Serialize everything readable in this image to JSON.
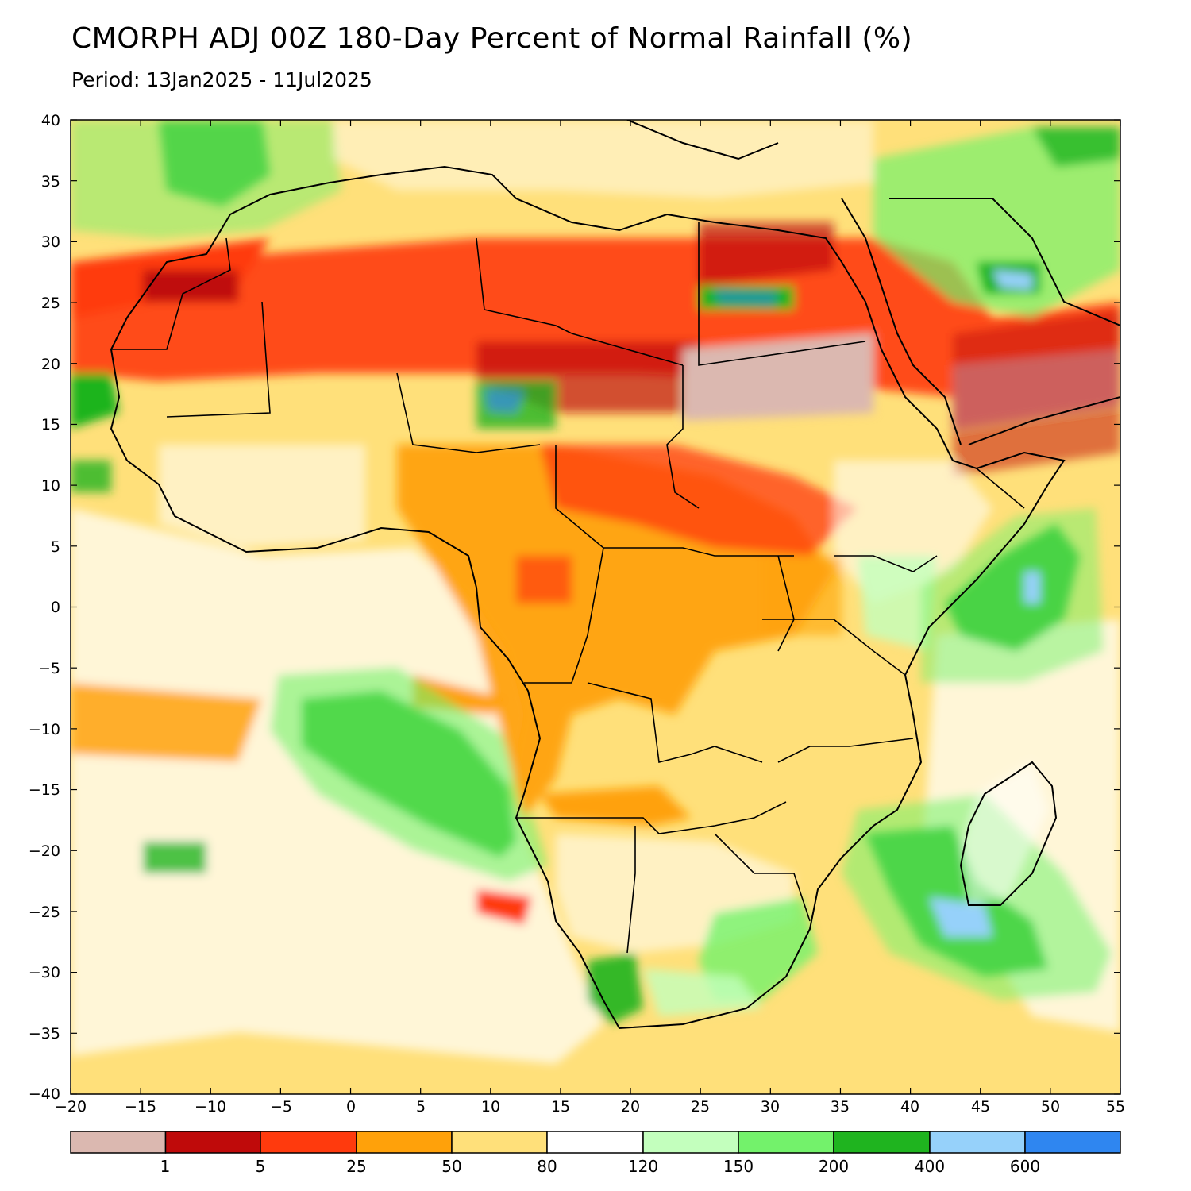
{
  "header": {
    "title": "CMORPH ADJ 00Z 180-Day Percent of Normal Rainfall (%)",
    "period": "Period: 13Jan2025 - 11Jul2025"
  },
  "axes": {
    "lon_ticks": [
      "−20",
      "−15",
      "−10",
      "−5",
      "0",
      "5",
      "10",
      "15",
      "20",
      "25",
      "30",
      "35",
      "40",
      "45",
      "50",
      "55"
    ],
    "lat_ticks": [
      "40",
      "35",
      "30",
      "25",
      "20",
      "15",
      "10",
      "5",
      "0",
      "−5",
      "−10",
      "−15",
      "−20",
      "−25",
      "−30",
      "−35",
      "−40"
    ]
  },
  "legend": {
    "colors": [
      "#dbb8b0",
      "#bf0a0a",
      "#ff3a0d",
      "#ffa10a",
      "#ffe07a",
      "#ffffff",
      "#c3ffbd",
      "#73f26b",
      "#1fb41f",
      "#96d1fa",
      "#2f86f0"
    ],
    "labels": [
      "1",
      "5",
      "25",
      "50",
      "80",
      "120",
      "150",
      "200",
      "400",
      "600"
    ]
  }
}
